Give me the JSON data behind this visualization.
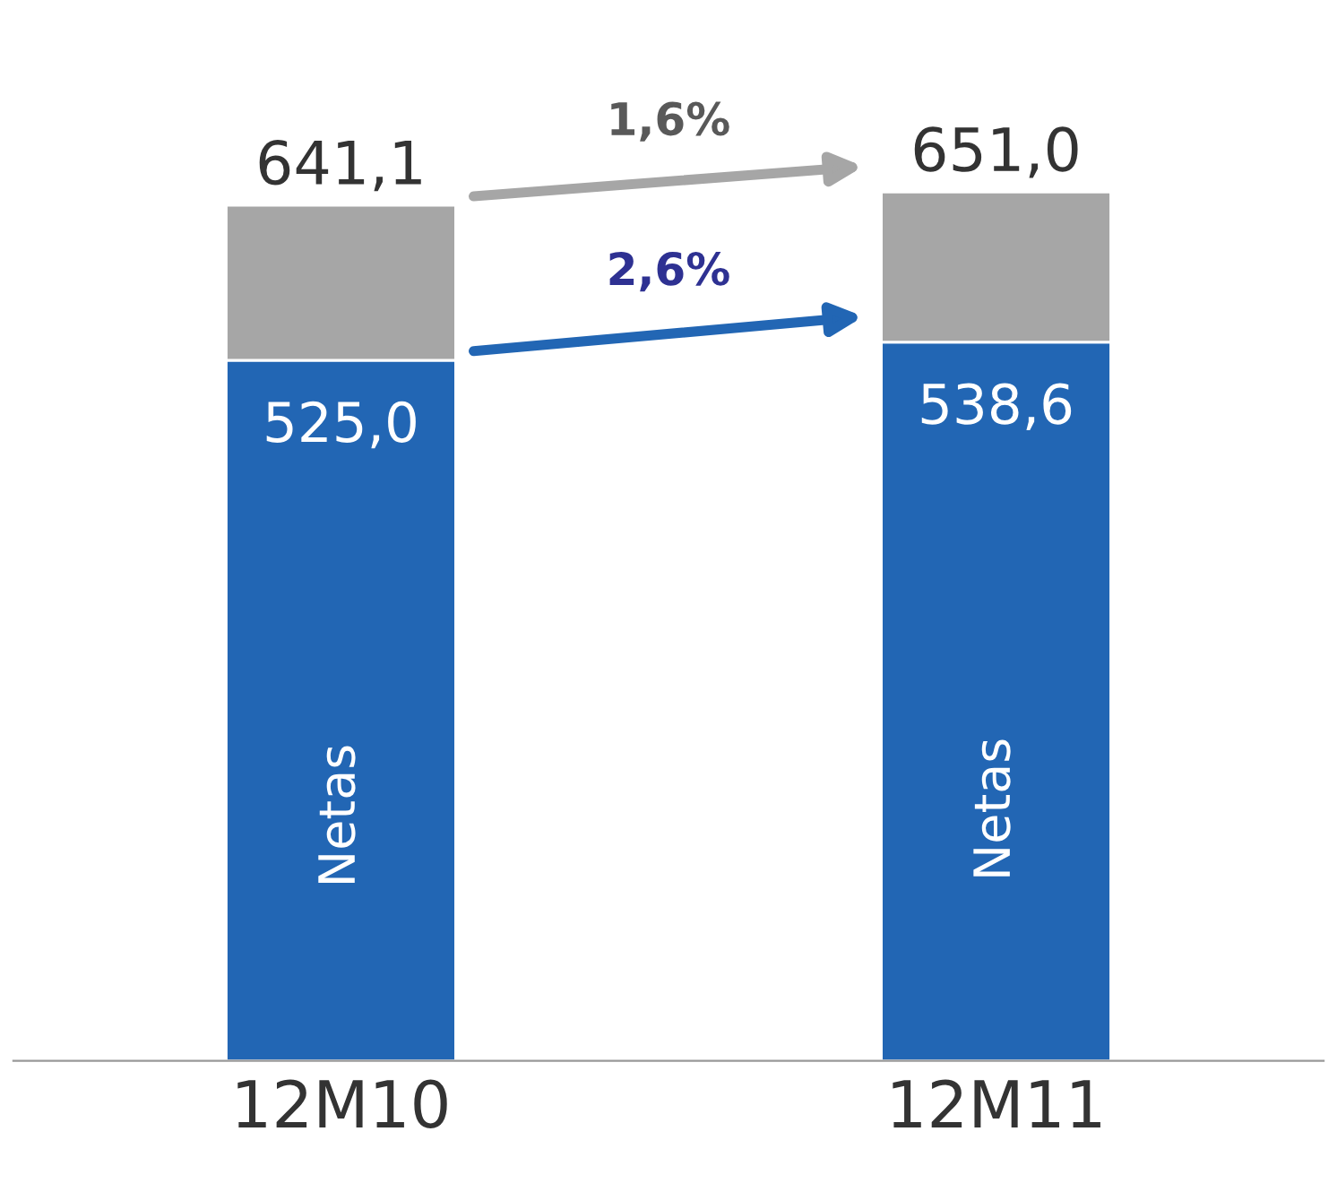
{
  "chart_data": {
    "type": "bar",
    "stacked": true,
    "legend": false,
    "grid": false,
    "categories": [
      "12M10",
      "12M11"
    ],
    "series": [
      {
        "name": "Netas",
        "color": "#2266b4",
        "values": [
          525.0,
          538.6
        ],
        "value_labels": [
          "525,0",
          "538,6"
        ]
      },
      {
        "color": "#a6a6a6",
        "values": [
          116.1,
          112.4
        ]
      }
    ],
    "totals": [
      "641,1",
      "651,0"
    ],
    "annotations": [
      "1,6%",
      "2,6%"
    ]
  }
}
